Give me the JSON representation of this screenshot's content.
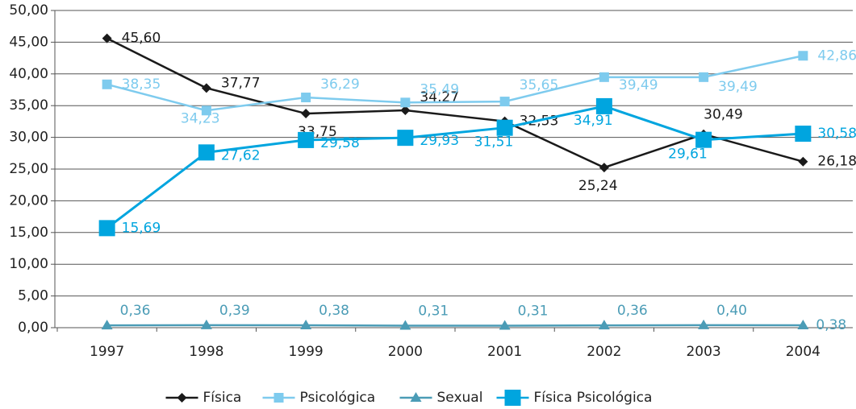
{
  "chart_data": {
    "type": "line",
    "categories": [
      "1997",
      "1998",
      "1999",
      "2000",
      "2001",
      "2002",
      "2003",
      "2004"
    ],
    "series": [
      {
        "name": "Física",
        "color": "#1a1a1a",
        "marker": "diamond",
        "values": [
          45.6,
          37.77,
          33.75,
          34.27,
          32.53,
          25.24,
          30.49,
          26.18
        ],
        "value_labels": [
          "45,60",
          "37,77",
          "33,75",
          "34,27",
          "32,53",
          "25,24",
          "30,49",
          "26,18"
        ]
      },
      {
        "name": "Psicológica",
        "color": "#7ecbee",
        "marker": "square",
        "values": [
          38.35,
          34.23,
          36.29,
          35.49,
          35.65,
          39.49,
          39.49,
          42.86
        ],
        "value_labels": [
          "38,35",
          "34,23",
          "36,29",
          "35,49",
          "35,65",
          "39,49",
          "39,49",
          "42,86"
        ]
      },
      {
        "name": "Sexual",
        "color": "#4b9cb6",
        "marker": "triangle",
        "values": [
          0.36,
          0.39,
          0.38,
          0.31,
          0.31,
          0.36,
          0.4,
          0.38
        ],
        "value_labels": [
          "0,36",
          "0,39",
          "0,38",
          "0,31",
          "0,31",
          "0,36",
          "0,40",
          "0,38"
        ]
      },
      {
        "name": "Física Psicológica",
        "color": "#00a5df",
        "marker": "bigsquare",
        "values": [
          15.69,
          27.62,
          29.58,
          29.93,
          31.51,
          34.91,
          29.61,
          30.58
        ],
        "value_labels": [
          "15,69",
          "27,62",
          "29,58",
          "29,93",
          "31,51",
          "34,91",
          "29,61",
          "30,58"
        ]
      }
    ],
    "ylim": [
      0,
      50
    ],
    "yticks": [
      {
        "value": 0,
        "label": "0,00"
      },
      {
        "value": 5,
        "label": "5,00"
      },
      {
        "value": 10,
        "label": "10,00"
      },
      {
        "value": 15,
        "label": "15,00"
      },
      {
        "value": 20,
        "label": "20,00"
      },
      {
        "value": 25,
        "label": "25,00"
      },
      {
        "value": 30,
        "label": "30,00"
      },
      {
        "value": 35,
        "label": "35,00"
      },
      {
        "value": 40,
        "label": "40,00"
      },
      {
        "value": 45,
        "label": "45,00"
      },
      {
        "value": 50,
        "label": "50,00"
      }
    ],
    "grid": true,
    "legend": "bottom"
  }
}
